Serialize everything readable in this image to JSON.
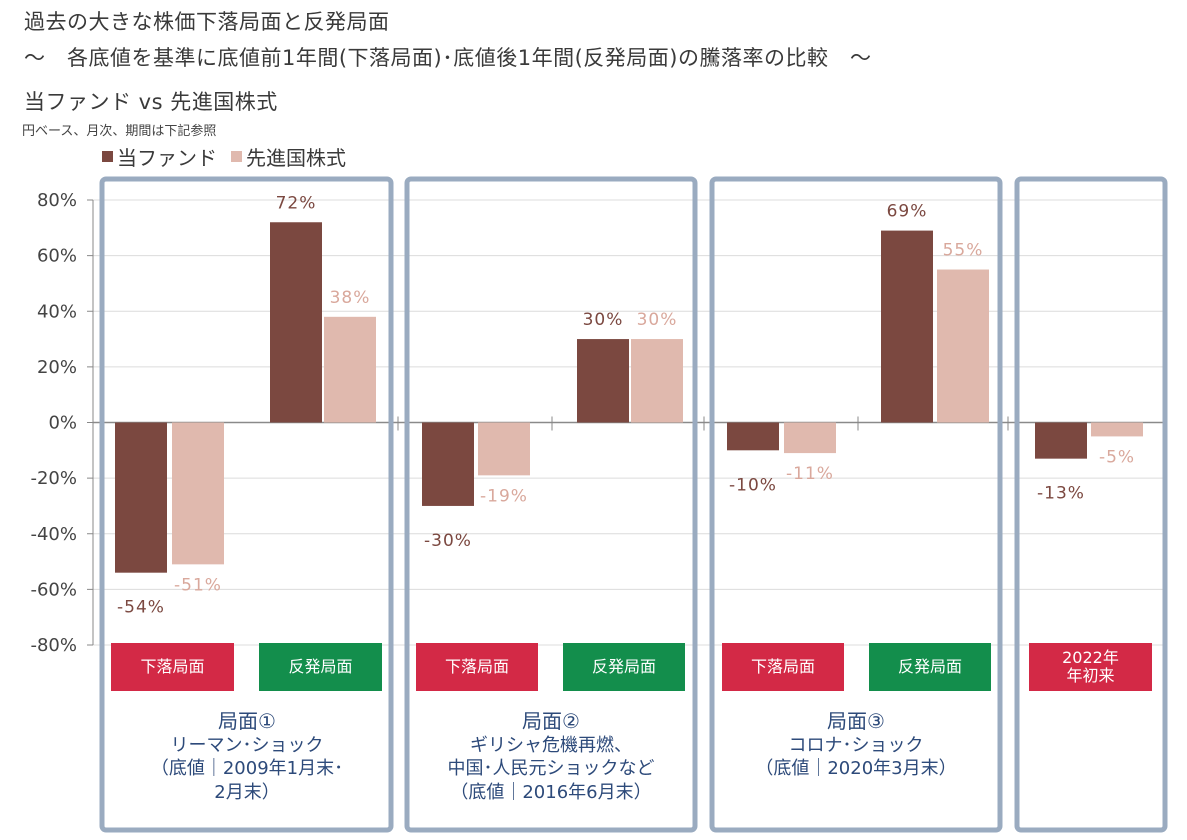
{
  "header": {
    "title": "過去の大きな株価下落局面と反発局面",
    "subtitle": "～　各底値を基準に底値前1年間(下落局面)･底値後1年間(反発局面)の騰落率の比較　～",
    "comparison": "当ファンド vs 先進国株式",
    "note": "円ベース、月次、期間は下記参照"
  },
  "colors": {
    "fund": "#7b4840",
    "benchmark": "#e0b9ae",
    "decline_box": "#d32946",
    "rebound_box": "#138e4c",
    "frame": "#9aabc0",
    "desc_text": "#2d4a7a"
  },
  "phases": [
    {
      "title": "局面①",
      "lines": [
        "リーマン･ショック",
        "（底値｜2009年1月末･",
        "2月末）"
      ],
      "tags": [
        "下落局面",
        "反発局面"
      ]
    },
    {
      "title": "局面②",
      "lines": [
        "ギリシャ危機再燃、",
        "中国･人民元ショックなど",
        "（底値｜2016年6月末）"
      ],
      "tags": [
        "下落局面",
        "反発局面"
      ]
    },
    {
      "title": "局面③",
      "lines": [
        "コロナ･ショック",
        "（底値｜2020年3月末）"
      ],
      "tags": [
        "下落局面",
        "反発局面"
      ]
    },
    {
      "title": "",
      "lines": [],
      "tags": [
        "2022年\n年初来"
      ]
    }
  ],
  "chart_data": {
    "type": "bar",
    "title": "過去の大きな株価下落局面と反発局面",
    "categories": [
      "局面① 下落局面",
      "局面① 反発局面",
      "局面② 下落局面",
      "局面② 反発局面",
      "局面③ 下落局面",
      "局面③ 反発局面",
      "2022年 年初来"
    ],
    "series": [
      {
        "name": "当ファンド",
        "values": [
          -54,
          72,
          -30,
          30,
          -10,
          69,
          -13
        ],
        "labels": [
          "-54%",
          "72%",
          "-30%",
          "30%",
          "-10%",
          "69%",
          "-13%"
        ]
      },
      {
        "name": "先進国株式",
        "values": [
          -51,
          38,
          -19,
          30,
          -11,
          55,
          -5
        ],
        "labels": [
          "-51%",
          "38%",
          "-19%",
          "30%",
          "-11%",
          "55%",
          "-5%"
        ]
      }
    ],
    "ylim": [
      -80,
      80
    ],
    "yticks": [
      "80%",
      "60%",
      "40%",
      "20%",
      "0%",
      "-20%",
      "-40%",
      "-60%",
      "-80%"
    ],
    "ytick_values": [
      80,
      60,
      40,
      20,
      0,
      -20,
      -40,
      -60,
      -80
    ],
    "xlabel": "",
    "ylabel": "",
    "grid": true,
    "legend": "top-left"
  }
}
